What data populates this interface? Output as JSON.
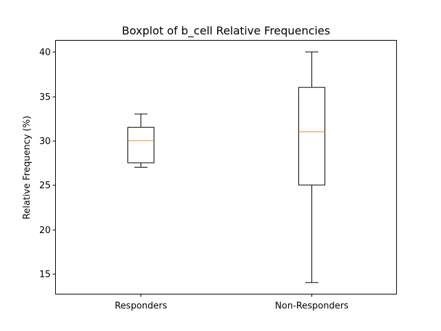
{
  "chart_data": {
    "type": "box",
    "title": "Boxplot of b_cell Relative Frequencies",
    "xlabel": "",
    "ylabel": "Relative Frequency (%)",
    "ylim": [
      12.7,
      41.3
    ],
    "yticks": [
      15,
      20,
      25,
      30,
      35,
      40
    ],
    "categories": [
      "Responders",
      "Non-Responders"
    ],
    "boxes": [
      {
        "category": "Responders",
        "whisker_low": 27,
        "q1": 27.5,
        "median": 30,
        "q3": 31.5,
        "whisker_high": 33
      },
      {
        "category": "Non-Responders",
        "whisker_low": 14,
        "q1": 25,
        "median": 31,
        "q3": 36,
        "whisker_high": 40
      }
    ],
    "grid": false,
    "colors": {
      "box": "#000000",
      "median": "#ff7f0e",
      "axes": "#000000"
    }
  }
}
